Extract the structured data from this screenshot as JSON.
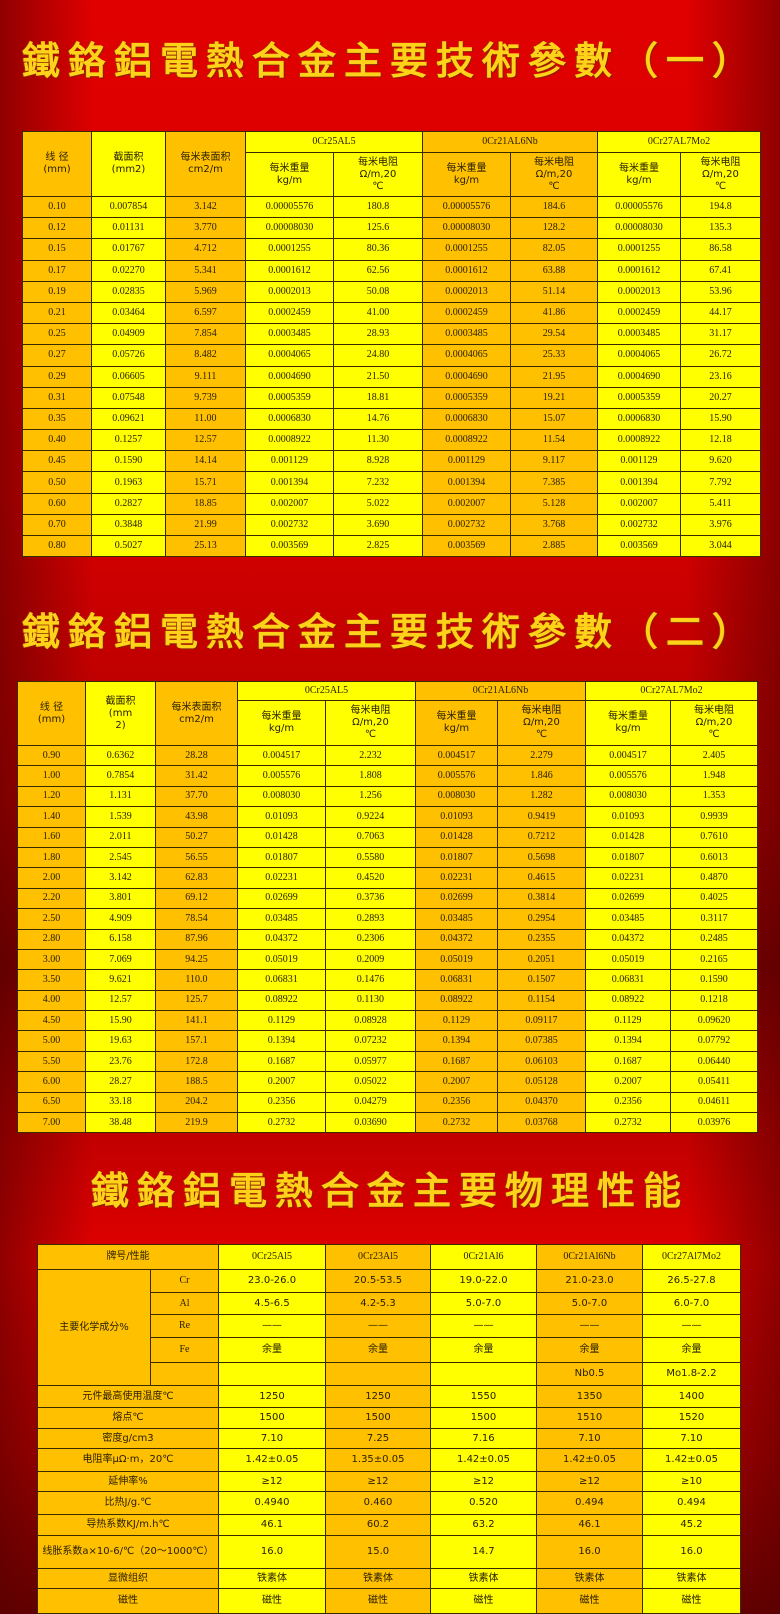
{
  "titles": {
    "t1": "鐵鉻鋁電熱合金主要技術參數（一）",
    "t2": "鐵鉻鋁電熱合金主要技術參數（二）",
    "t3": "鐵鉻鋁電熱合金主要物理性能"
  },
  "colors": {
    "orange": "#ffc000",
    "yellow": "#ffff00",
    "background": "#d80000",
    "title": "#ffd21a"
  },
  "table1": {
    "headers": {
      "diameter": "线 径\n(mm)",
      "area": "截面积\n(mm2)",
      "surface": "每米表面积\ncm2/m",
      "groups": [
        "0Cr25AL5",
        "0Cr21AL6Nb",
        "0Cr27AL7Mo2"
      ],
      "weight": "每米重量\nkg/m",
      "resistance": "每米电阻\nΩ/m,20\n℃"
    },
    "rows": [
      [
        "0.10",
        "0.007854",
        "3.142",
        "0.00005576",
        "180.8",
        "0.00005576",
        "184.6",
        "0.00005576",
        "194.8"
      ],
      [
        "0.12",
        "0.01131",
        "3.770",
        "0.00008030",
        "125.6",
        "0.00008030",
        "128.2",
        "0.00008030",
        "135.3"
      ],
      [
        "0.15",
        "0.01767",
        "4.712",
        "0.0001255",
        "80.36",
        "0.0001255",
        "82.05",
        "0.0001255",
        "86.58"
      ],
      [
        "0.17",
        "0.02270",
        "5.341",
        "0.0001612",
        "62.56",
        "0.0001612",
        "63.88",
        "0.0001612",
        "67.41"
      ],
      [
        "0.19",
        "0.02835",
        "5.969",
        "0.0002013",
        "50.08",
        "0.0002013",
        "51.14",
        "0.0002013",
        "53.96"
      ],
      [
        "0.21",
        "0.03464",
        "6.597",
        "0.0002459",
        "41.00",
        "0.0002459",
        "41.86",
        "0.0002459",
        "44.17"
      ],
      [
        "0.25",
        "0.04909",
        "7.854",
        "0.0003485",
        "28.93",
        "0.0003485",
        "29.54",
        "0.0003485",
        "31.17"
      ],
      [
        "0.27",
        "0.05726",
        "8.482",
        "0.0004065",
        "24.80",
        "0.0004065",
        "25.33",
        "0.0004065",
        "26.72"
      ],
      [
        "0.29",
        "0.06605",
        "9.111",
        "0.0004690",
        "21.50",
        "0.0004690",
        "21.95",
        "0.0004690",
        "23.16"
      ],
      [
        "0.31",
        "0.07548",
        "9.739",
        "0.0005359",
        "18.81",
        "0.0005359",
        "19.21",
        "0.0005359",
        "20.27"
      ],
      [
        "0.35",
        "0.09621",
        "11.00",
        "0.0006830",
        "14.76",
        "0.0006830",
        "15.07",
        "0.0006830",
        "15.90"
      ],
      [
        "0.40",
        "0.1257",
        "12.57",
        "0.0008922",
        "11.30",
        "0.0008922",
        "11.54",
        "0.0008922",
        "12.18"
      ],
      [
        "0.45",
        "0.1590",
        "14.14",
        "0.001129",
        "8.928",
        "0.001129",
        "9.117",
        "0.001129",
        "9.620"
      ],
      [
        "0.50",
        "0.1963",
        "15.71",
        "0.001394",
        "7.232",
        "0.001394",
        "7.385",
        "0.001394",
        "7.792"
      ],
      [
        "0.60",
        "0.2827",
        "18.85",
        "0.002007",
        "5.022",
        "0.002007",
        "5.128",
        "0.002007",
        "5.411"
      ],
      [
        "0.70",
        "0.3848",
        "21.99",
        "0.002732",
        "3.690",
        "0.002732",
        "3.768",
        "0.002732",
        "3.976"
      ],
      [
        "0.80",
        "0.5027",
        "25.13",
        "0.003569",
        "2.825",
        "0.003569",
        "2.885",
        "0.003569",
        "3.044"
      ]
    ]
  },
  "table2": {
    "headers": {
      "diameter": "线 径\n(mm)",
      "area": "截面积\n(mm\n2)",
      "surface": "每米表面积\ncm2/m",
      "groups": [
        "0Cr25AL5",
        "0Cr21AL6Nb",
        "0Cr27AL7Mo2"
      ],
      "weight": "每米重量\nkg/m",
      "resistance": "每米电阻\nΩ/m,20\n℃"
    },
    "rows": [
      [
        "0.90",
        "0.6362",
        "28.28",
        "0.004517",
        "2.232",
        "0.004517",
        "2.279",
        "0.004517",
        "2.405"
      ],
      [
        "1.00",
        "0.7854",
        "31.42",
        "0.005576",
        "1.808",
        "0.005576",
        "1.846",
        "0.005576",
        "1.948"
      ],
      [
        "1.20",
        "1.131",
        "37.70",
        "0.008030",
        "1.256",
        "0.008030",
        "1.282",
        "0.008030",
        "1.353"
      ],
      [
        "1.40",
        "1.539",
        "43.98",
        "0.01093",
        "0.9224",
        "0.01093",
        "0.9419",
        "0.01093",
        "0.9939"
      ],
      [
        "1.60",
        "2.011",
        "50.27",
        "0.01428",
        "0.7063",
        "0.01428",
        "0.7212",
        "0.01428",
        "0.7610"
      ],
      [
        "1.80",
        "2.545",
        "56.55",
        "0.01807",
        "0.5580",
        "0.01807",
        "0.5698",
        "0.01807",
        "0.6013"
      ],
      [
        "2.00",
        "3.142",
        "62.83",
        "0.02231",
        "0.4520",
        "0.02231",
        "0.4615",
        "0.02231",
        "0.4870"
      ],
      [
        "2.20",
        "3.801",
        "69.12",
        "0.02699",
        "0.3736",
        "0.02699",
        "0.3814",
        "0.02699",
        "0.4025"
      ],
      [
        "2.50",
        "4.909",
        "78.54",
        "0.03485",
        "0.2893",
        "0.03485",
        "0.2954",
        "0.03485",
        "0.3117"
      ],
      [
        "2.80",
        "6.158",
        "87.96",
        "0.04372",
        "0.2306",
        "0.04372",
        "0.2355",
        "0.04372",
        "0.2485"
      ],
      [
        "3.00",
        "7.069",
        "94.25",
        "0.05019",
        "0.2009",
        "0.05019",
        "0.2051",
        "0.05019",
        "0.2165"
      ],
      [
        "3.50",
        "9.621",
        "110.0",
        "0.06831",
        "0.1476",
        "0.06831",
        "0.1507",
        "0.06831",
        "0.1590"
      ],
      [
        "4.00",
        "12.57",
        "125.7",
        "0.08922",
        "0.1130",
        "0.08922",
        "0.1154",
        "0.08922",
        "0.1218"
      ],
      [
        "4.50",
        "15.90",
        "141.1",
        "0.1129",
        "0.08928",
        "0.1129",
        "0.09117",
        "0.1129",
        "0.09620"
      ],
      [
        "5.00",
        "19.63",
        "157.1",
        "0.1394",
        "0.07232",
        "0.1394",
        "0.07385",
        "0.1394",
        "0.07792"
      ],
      [
        "5.50",
        "23.76",
        "172.8",
        "0.1687",
        "0.05977",
        "0.1687",
        "0.06103",
        "0.1687",
        "0.06440"
      ],
      [
        "6.00",
        "28.27",
        "188.5",
        "0.2007",
        "0.05022",
        "0.2007",
        "0.05128",
        "0.2007",
        "0.05411"
      ],
      [
        "6.50",
        "33.18",
        "204.2",
        "0.2356",
        "0.04279",
        "0.2356",
        "0.04370",
        "0.2356",
        "0.04611"
      ],
      [
        "7.00",
        "38.48",
        "219.9",
        "0.2732",
        "0.03690",
        "0.2732",
        "0.03768",
        "0.2732",
        "0.03976"
      ]
    ]
  },
  "table3": {
    "header_label": "牌号/性能",
    "grades": [
      "0Cr25Al5",
      "0Cr23Al5",
      "0Cr21Al6",
      "0Cr21Al6Nb",
      "0Cr27Al7Mo2"
    ],
    "composition_label": "主要化学成分%",
    "composition": [
      {
        "element": "Cr",
        "values": [
          "23.0-26.0",
          "20.5-53.5",
          "19.0-22.0",
          "21.0-23.0",
          "26.5-27.8"
        ]
      },
      {
        "element": "Al",
        "values": [
          "4.5-6.5",
          "4.2-5.3",
          "5.0-7.0",
          "5.0-7.0",
          "6.0-7.0"
        ]
      },
      {
        "element": "Re",
        "values": [
          "——",
          "——",
          "——",
          "——",
          "——"
        ]
      },
      {
        "element": "Fe",
        "values": [
          "余量",
          "余量",
          "余量",
          "余量",
          "余量"
        ]
      },
      {
        "element": "",
        "values": [
          "",
          "",
          "",
          "Nb0.5",
          "Mo1.8-2.2"
        ]
      }
    ],
    "properties": [
      {
        "label": "元件最高使用温度℃",
        "values": [
          "1250",
          "1250",
          "1550",
          "1350",
          "1400"
        ]
      },
      {
        "label": "熔点℃",
        "values": [
          "1500",
          "1500",
          "1500",
          "1510",
          "1520"
        ]
      },
      {
        "label": "密度g/cm3",
        "values": [
          "7.10",
          "7.25",
          "7.16",
          "7.10",
          "7.10"
        ]
      },
      {
        "label": "电阻率μΩ·m，20℃",
        "values": [
          "1.42±0.05",
          "1.35±0.05",
          "1.42±0.05",
          "1.42±0.05",
          "1.42±0.05"
        ]
      },
      {
        "label": "延伸率%",
        "values": [
          "≥12",
          "≥12",
          "≥12",
          "≥12",
          "≥10"
        ]
      },
      {
        "label": "比热J/g.℃",
        "values": [
          "0.4940",
          "0.460",
          "0.520",
          "0.494",
          "0.494"
        ]
      },
      {
        "label": "导热系数KJ/m.h℃",
        "values": [
          "46.1",
          "60.2",
          "63.2",
          "46.1",
          "45.2"
        ]
      },
      {
        "label": "线胀系数a×10-6/℃（20～1000℃）",
        "values": [
          "16.0",
          "15.0",
          "14.7",
          "16.0",
          "16.0"
        ]
      },
      {
        "label": "显微组织",
        "values": [
          "铁素体",
          "铁素体",
          "铁素体",
          "铁素体",
          "铁素体"
        ]
      },
      {
        "label": "磁性",
        "values": [
          "磁性",
          "磁性",
          "磁性",
          "磁性",
          "磁性"
        ]
      }
    ]
  }
}
